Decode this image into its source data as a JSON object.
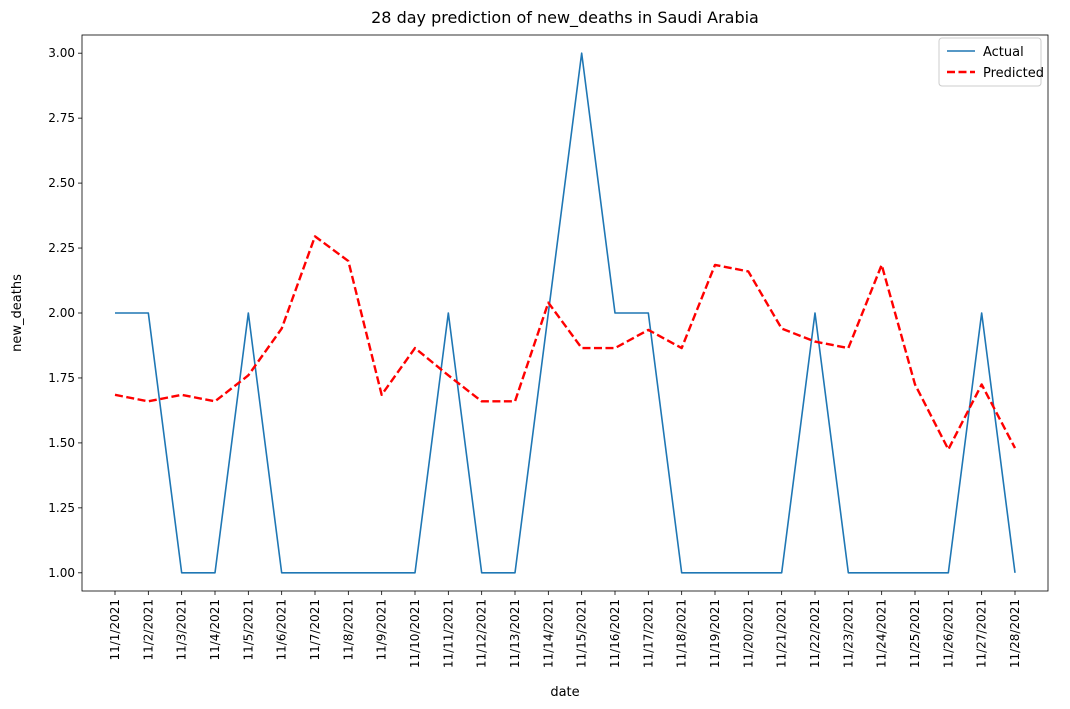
{
  "chart_data": {
    "type": "line",
    "title": "28 day prediction of new_deaths in Saudi Arabia",
    "xlabel": "date",
    "ylabel": "new_deaths",
    "categories": [
      "11/1/2021",
      "11/2/2021",
      "11/3/2021",
      "11/4/2021",
      "11/5/2021",
      "11/6/2021",
      "11/7/2021",
      "11/8/2021",
      "11/9/2021",
      "11/10/2021",
      "11/11/2021",
      "11/12/2021",
      "11/13/2021",
      "11/14/2021",
      "11/15/2021",
      "11/16/2021",
      "11/17/2021",
      "11/18/2021",
      "11/19/2021",
      "11/20/2021",
      "11/21/2021",
      "11/22/2021",
      "11/23/2021",
      "11/24/2021",
      "11/25/2021",
      "11/26/2021",
      "11/27/2021",
      "11/28/2021"
    ],
    "ylim": [
      0.93,
      3.07
    ],
    "yticks": [
      "1.00",
      "1.25",
      "1.50",
      "1.75",
      "2.00",
      "2.25",
      "2.50",
      "2.75",
      "3.00"
    ],
    "grid": false,
    "legend_position": "top-right",
    "series": [
      {
        "name": "Actual",
        "color": "#1f77b4",
        "style": "solid",
        "values": [
          2,
          2,
          1,
          1,
          2,
          1,
          1,
          1,
          1,
          1,
          2,
          1,
          1,
          2,
          3,
          2,
          2,
          1,
          1,
          1,
          1,
          2,
          1,
          1,
          1,
          1,
          2,
          1
        ]
      },
      {
        "name": "Predicted",
        "color": "#ff0000",
        "style": "dashed",
        "values": [
          1.685,
          1.66,
          1.685,
          1.66,
          1.76,
          1.94,
          2.295,
          2.2,
          1.685,
          1.865,
          1.76,
          1.66,
          1.66,
          2.04,
          1.865,
          1.865,
          1.935,
          1.865,
          2.185,
          2.16,
          1.94,
          1.89,
          1.865,
          2.185,
          1.725,
          1.475,
          1.725,
          1.48
        ]
      }
    ]
  }
}
